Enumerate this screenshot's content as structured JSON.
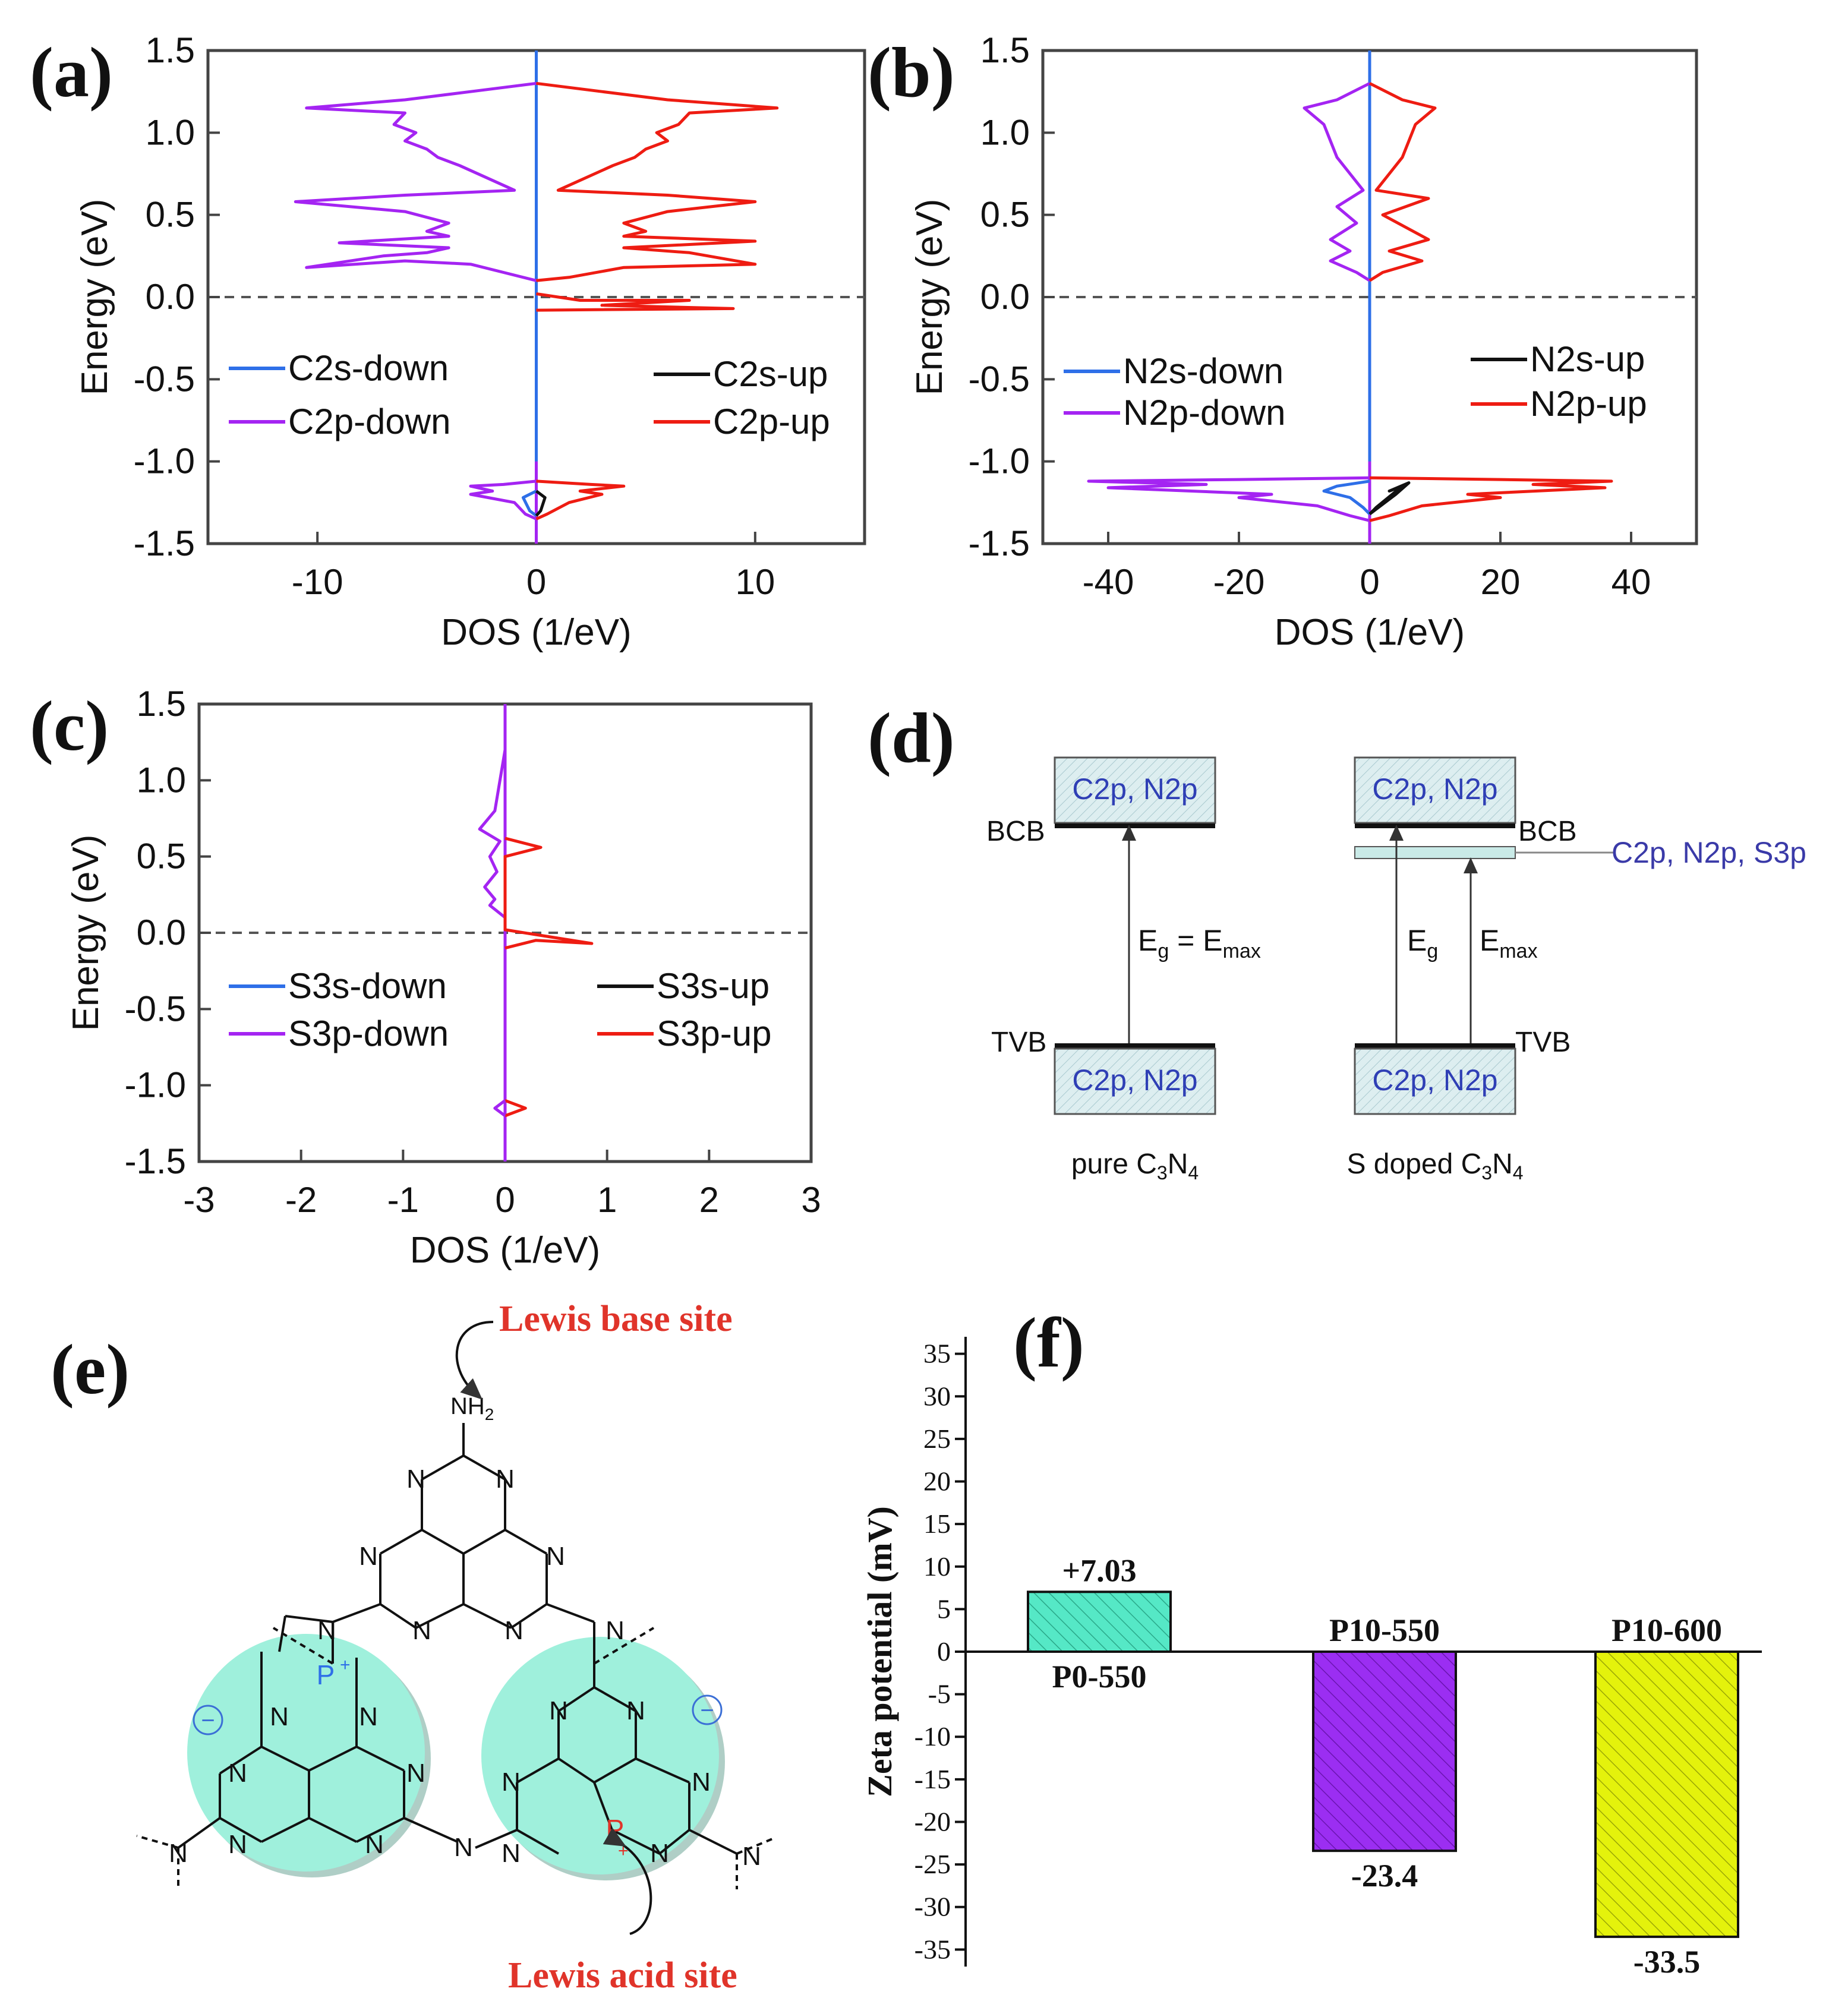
{
  "panels": {
    "a": {
      "letter": "(a)"
    },
    "b": {
      "letter": "(b)"
    },
    "c": {
      "letter": "(c)"
    },
    "d": {
      "letter": "(d)"
    },
    "e": {
      "letter": "(e)"
    },
    "f": {
      "letter": "(f)"
    }
  },
  "colors": {
    "blue": "#2e6fe8",
    "purple": "#a424f2",
    "red": "#ee1c12",
    "black": "#111111",
    "teal": "#55e8c6",
    "violet": "#9b2ef2",
    "yellow": "#e4f20c",
    "lightteal": "#9ff0dc",
    "label_red": "#e0342a"
  },
  "chart_data": [
    {
      "id": "a",
      "type": "line",
      "xlabel": "DOS (1/eV)",
      "ylabel": "Energy (eV)",
      "xlim": [
        -15,
        15
      ],
      "ylim": [
        -1.5,
        1.5
      ],
      "xticks": [
        "-10",
        "0",
        "10"
      ],
      "xtick_values": [
        -10,
        0,
        10
      ],
      "yticks": [
        "-1.5",
        "-1.0",
        "-0.5",
        "0.0",
        "0.5",
        "1.0",
        "1.5"
      ],
      "legend": [
        "C2s-down",
        "C2p-down",
        "C2s-up",
        "C2p-up"
      ],
      "series": [
        {
          "name": "C2p-down",
          "color": "purple",
          "points": [
            [
              0,
              1.3
            ],
            [
              -3,
              1.25
            ],
            [
              -6,
              1.2
            ],
            [
              -10.5,
              1.15
            ],
            [
              -6,
              1.12
            ],
            [
              -6.5,
              1.05
            ],
            [
              -5.5,
              1.0
            ],
            [
              -6,
              0.95
            ],
            [
              -5,
              0.9
            ],
            [
              -4.5,
              0.85
            ],
            [
              -3.5,
              0.8
            ],
            [
              -1,
              0.65
            ],
            [
              -6,
              0.62
            ],
            [
              -11,
              0.58
            ],
            [
              -6,
              0.52
            ],
            [
              -4,
              0.45
            ],
            [
              -5,
              0.4
            ],
            [
              -4,
              0.37
            ],
            [
              -9,
              0.33
            ],
            [
              -4,
              0.3
            ],
            [
              -5,
              0.27
            ],
            [
              -7,
              0.25
            ],
            [
              -10.5,
              0.18
            ],
            [
              -6,
              0.22
            ],
            [
              -3,
              0.2
            ],
            [
              -1.5,
              0.15
            ],
            [
              0,
              0.1
            ]
          ]
        },
        {
          "name": "C2p-up",
          "color": "red",
          "points": [
            [
              0,
              1.3
            ],
            [
              3,
              1.25
            ],
            [
              6,
              1.2
            ],
            [
              11,
              1.15
            ],
            [
              7,
              1.12
            ],
            [
              6.5,
              1.05
            ],
            [
              5.5,
              1.0
            ],
            [
              6,
              0.95
            ],
            [
              5,
              0.9
            ],
            [
              4.5,
              0.85
            ],
            [
              3.5,
              0.8
            ],
            [
              1,
              0.65
            ],
            [
              6,
              0.62
            ],
            [
              10,
              0.58
            ],
            [
              6,
              0.52
            ],
            [
              4,
              0.45
            ],
            [
              5,
              0.4
            ],
            [
              4,
              0.37
            ],
            [
              10,
              0.34
            ],
            [
              4,
              0.3
            ],
            [
              7,
              0.27
            ],
            [
              10,
              0.2
            ],
            [
              4,
              0.18
            ],
            [
              1.5,
              0.12
            ],
            [
              0,
              0.1
            ]
          ]
        },
        {
          "name": "C2p-up-2",
          "color": "red",
          "points": [
            [
              0,
              0.02
            ],
            [
              2,
              -0.02
            ],
            [
              7,
              -0.02
            ],
            [
              3,
              -0.05
            ],
            [
              9,
              -0.07
            ],
            [
              0,
              -0.08
            ]
          ]
        },
        {
          "name": "C2p-down-vb",
          "color": "purple",
          "points": [
            [
              0,
              -1.12
            ],
            [
              -1.5,
              -1.14
            ],
            [
              -3,
              -1.15
            ],
            [
              -2,
              -1.18
            ],
            [
              -3,
              -1.2
            ],
            [
              -1,
              -1.25
            ],
            [
              -0.5,
              -1.32
            ],
            [
              0,
              -1.35
            ]
          ]
        },
        {
          "name": "C2p-up-vb",
          "color": "red",
          "points": [
            [
              0,
              -1.12
            ],
            [
              2.5,
              -1.14
            ],
            [
              4,
              -1.15
            ],
            [
              2,
              -1.18
            ],
            [
              3,
              -1.2
            ],
            [
              1.5,
              -1.25
            ],
            [
              0.5,
              -1.32
            ],
            [
              0,
              -1.35
            ]
          ]
        },
        {
          "name": "C2s-down",
          "color": "blue",
          "points": [
            [
              0,
              -1.18
            ],
            [
              -0.6,
              -1.22
            ],
            [
              -0.3,
              -1.3
            ],
            [
              0,
              -1.33
            ]
          ]
        },
        {
          "name": "C2s-up",
          "color": "black",
          "points": [
            [
              0,
              -1.18
            ],
            [
              0.4,
              -1.22
            ],
            [
              0.2,
              -1.3
            ],
            [
              0,
              -1.33
            ]
          ]
        }
      ],
      "center_line": {
        "color": "blue",
        "range": [
          -1.0,
          1.5
        ]
      },
      "center_line2": {
        "color": "purple",
        "range": [
          -1.5,
          1.5
        ]
      }
    },
    {
      "id": "b",
      "type": "line",
      "xlabel": "DOS (1/eV)",
      "ylabel": "Energy (eV)",
      "xlim": [
        -50,
        50
      ],
      "ylim": [
        -1.5,
        1.5
      ],
      "xticks": [
        "-40",
        "-20",
        "0",
        "20",
        "40"
      ],
      "xtick_values": [
        -40,
        -20,
        0,
        20,
        40
      ],
      "yticks": [
        "-1.5",
        "-1.0",
        "-0.5",
        "0.0",
        "0.5",
        "1.0",
        "1.5"
      ],
      "legend": [
        "N2s-down",
        "N2p-down",
        "N2s-up",
        "N2p-up"
      ],
      "series": [
        {
          "name": "N2p-down",
          "color": "purple",
          "points": [
            [
              0,
              1.3
            ],
            [
              -5,
              1.2
            ],
            [
              -10,
              1.15
            ],
            [
              -7,
              1.05
            ],
            [
              -6,
              0.95
            ],
            [
              -5,
              0.85
            ],
            [
              -3,
              0.75
            ],
            [
              -1,
              0.65
            ],
            [
              -5,
              0.55
            ],
            [
              -2,
              0.45
            ],
            [
              -6,
              0.35
            ],
            [
              -3,
              0.28
            ],
            [
              -6,
              0.22
            ],
            [
              -2,
              0.15
            ],
            [
              0,
              0.1
            ]
          ]
        },
        {
          "name": "N2p-up",
          "color": "red",
          "points": [
            [
              0,
              1.3
            ],
            [
              5,
              1.2
            ],
            [
              10,
              1.15
            ],
            [
              7,
              1.05
            ],
            [
              6,
              0.95
            ],
            [
              5,
              0.85
            ],
            [
              3,
              0.75
            ],
            [
              1,
              0.65
            ],
            [
              9,
              0.6
            ],
            [
              2,
              0.5
            ],
            [
              9,
              0.35
            ],
            [
              3,
              0.28
            ],
            [
              8,
              0.22
            ],
            [
              2,
              0.15
            ],
            [
              0,
              0.1
            ]
          ]
        },
        {
          "name": "N2p-down-vb",
          "color": "purple",
          "points": [
            [
              0,
              -1.1
            ],
            [
              -20,
              -1.11
            ],
            [
              -43,
              -1.12
            ],
            [
              -25,
              -1.14
            ],
            [
              -40,
              -1.16
            ],
            [
              -15,
              -1.2
            ],
            [
              -20,
              -1.22
            ],
            [
              -8,
              -1.27
            ],
            [
              -3,
              -1.33
            ],
            [
              0,
              -1.36
            ]
          ]
        },
        {
          "name": "N2p-up-vb",
          "color": "red",
          "points": [
            [
              0,
              -1.1
            ],
            [
              20,
              -1.11
            ],
            [
              37,
              -1.12
            ],
            [
              25,
              -1.14
            ],
            [
              36,
              -1.16
            ],
            [
              15,
              -1.2
            ],
            [
              20,
              -1.22
            ],
            [
              8,
              -1.27
            ],
            [
              3,
              -1.33
            ],
            [
              0,
              -1.36
            ]
          ]
        },
        {
          "name": "N2s-down",
          "color": "blue",
          "points": [
            [
              0,
              -1.12
            ],
            [
              -5,
              -1.15
            ],
            [
              -7,
              -1.18
            ],
            [
              -3,
              -1.22
            ],
            [
              -1,
              -1.28
            ],
            [
              0,
              -1.32
            ]
          ]
        },
        {
          "name": "N2s-up",
          "color": "black",
          "points": [
            [
              0,
              -1.32
            ],
            [
              2,
              -1.26
            ],
            [
              4,
              -1.2
            ],
            [
              6,
              -1.13
            ],
            [
              3,
              -1.18
            ],
            [
              5,
              -1.15
            ],
            [
              1,
              -1.28
            ],
            [
              0,
              -1.32
            ]
          ]
        }
      ],
      "center_line": {
        "color": "blue",
        "range": [
          -1.0,
          1.5
        ]
      },
      "center_line2": {
        "color": "purple",
        "range": [
          -1.5,
          1.5
        ]
      }
    },
    {
      "id": "c",
      "type": "line",
      "xlabel": "DOS (1/eV)",
      "ylabel": "Energy (eV)",
      "xlim": [
        -3,
        3
      ],
      "ylim": [
        -1.5,
        1.5
      ],
      "xticks": [
        "-3",
        "-2",
        "-1",
        "0",
        "1",
        "2",
        "3"
      ],
      "xtick_values": [
        -3,
        -2,
        -1,
        0,
        1,
        2,
        3
      ],
      "yticks": [
        "-1.5",
        "-1.0",
        "-0.5",
        "0.0",
        "0.5",
        "1.0",
        "1.5"
      ],
      "legend": [
        "S3s-down",
        "S3p-down",
        "S3s-up",
        "S3p-up"
      ],
      "series": [
        {
          "name": "S3p-down",
          "color": "purple",
          "points": [
            [
              0,
              1.2
            ],
            [
              -0.05,
              1.0
            ],
            [
              -0.1,
              0.8
            ],
            [
              -0.25,
              0.68
            ],
            [
              -0.05,
              0.6
            ],
            [
              -0.15,
              0.5
            ],
            [
              -0.08,
              0.4
            ],
            [
              -0.2,
              0.3
            ],
            [
              -0.1,
              0.22
            ],
            [
              -0.15,
              0.18
            ],
            [
              0,
              0.1
            ]
          ]
        },
        {
          "name": "S3p-up",
          "color": "red",
          "points": [
            [
              0,
              0.62
            ],
            [
              0.35,
              0.56
            ],
            [
              0,
              0.5
            ],
            [
              0,
              0.02
            ],
            [
              0.85,
              -0.07
            ],
            [
              0.3,
              -0.05
            ],
            [
              0,
              -0.1
            ]
          ]
        },
        {
          "name": "S3p-up-vb",
          "color": "red",
          "points": [
            [
              0,
              -1.1
            ],
            [
              0.2,
              -1.15
            ],
            [
              0,
              -1.2
            ]
          ]
        },
        {
          "name": "S3p-down-vb",
          "color": "purple",
          "points": [
            [
              0,
              -1.1
            ],
            [
              -0.1,
              -1.15
            ],
            [
              0,
              -1.2
            ]
          ]
        }
      ],
      "center_line": {
        "color": "purple",
        "range": [
          -1.5,
          1.5
        ]
      },
      "center_line2": {
        "color": "blue",
        "range": [
          0.5,
          1.5
        ]
      }
    },
    {
      "id": "f",
      "type": "bar",
      "ylabel": "Zeta potential (mV)",
      "ylim": [
        -37,
        37
      ],
      "yticks": [
        "35",
        "30",
        "25",
        "20",
        "15",
        "10",
        "5",
        "0",
        "-5",
        "-10",
        "-15",
        "-20",
        "-25",
        "-30",
        "-35"
      ],
      "ytick_values": [
        35,
        30,
        25,
        20,
        15,
        10,
        5,
        0,
        -5,
        -10,
        -15,
        -20,
        -25,
        -30,
        -35
      ],
      "categories": [
        "P0-550",
        "P10-550",
        "P10-600"
      ],
      "values": [
        7.03,
        -23.4,
        -33.5
      ],
      "value_labels": [
        "+7.03",
        "-23.4",
        "-33.5"
      ],
      "bar_colors": [
        "teal",
        "violet",
        "yellow"
      ]
    }
  ],
  "diagram_d": {
    "pure": {
      "top_box": "C2p, N2p",
      "bcb": "BCB",
      "eq": "E",
      "eq_sub1": "g",
      "eq_mid": " = E",
      "eq_sub2": "max",
      "tvb": "TVB",
      "bottom_box": "C2p, N2p",
      "caption": "pure C",
      "cap_sub1": "3",
      "cap_mid": "N",
      "cap_sub2": "4"
    },
    "doped": {
      "top_box": "C2p, N2p",
      "bcb": "BCB",
      "mid_label": "C2p, N2p, S3p",
      "eg": "E",
      "eg_sub": "g",
      "emax": "E",
      "emax_sub": "max",
      "tvb": "TVB",
      "bottom_box": "C2p, N2p",
      "caption": "S doped C",
      "cap_sub1": "3",
      "cap_mid": "N",
      "cap_sub2": "4"
    }
  },
  "structure_e": {
    "lewis_base": "Lewis base site",
    "lewis_acid": "Lewis acid site",
    "nh2": "NH",
    "nh2_sub": "2",
    "atom_n": "N",
    "atom_p": "P",
    "charge_plus": "+",
    "charge_minus": "−"
  }
}
